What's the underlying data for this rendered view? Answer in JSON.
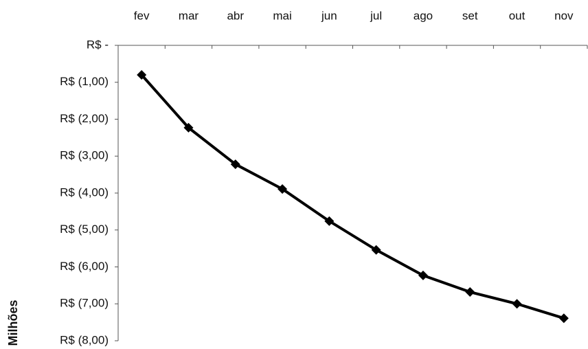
{
  "chart_data": {
    "type": "line",
    "ylabel": "Milhões",
    "categories": [
      "fev",
      "mar",
      "abr",
      "mai",
      "jun",
      "jul",
      "ago",
      "set",
      "out",
      "nov"
    ],
    "series": [
      {
        "name": null,
        "color": "#000000",
        "values": [
          -0.8,
          -2.23,
          -3.22,
          -3.89,
          -4.76,
          -5.54,
          -6.23,
          -6.68,
          -7.0,
          -7.39
        ]
      }
    ],
    "ylim": [
      -8,
      0
    ],
    "yticks": [
      {
        "value": 0,
        "label": "R$ -"
      },
      {
        "value": -1,
        "label": "R$ (1,00)"
      },
      {
        "value": -2,
        "label": "R$ (2,00)"
      },
      {
        "value": -3,
        "label": "R$ (3,00)"
      },
      {
        "value": -4,
        "label": "R$ (4,00)"
      },
      {
        "value": -5,
        "label": "R$ (5,00)"
      },
      {
        "value": -6,
        "label": "R$ (6,00)"
      },
      {
        "value": -7,
        "label": "R$ (7,00)"
      },
      {
        "value": -8,
        "label": "R$ (8,00)"
      }
    ],
    "x_axis_position": "top",
    "grid": false
  }
}
